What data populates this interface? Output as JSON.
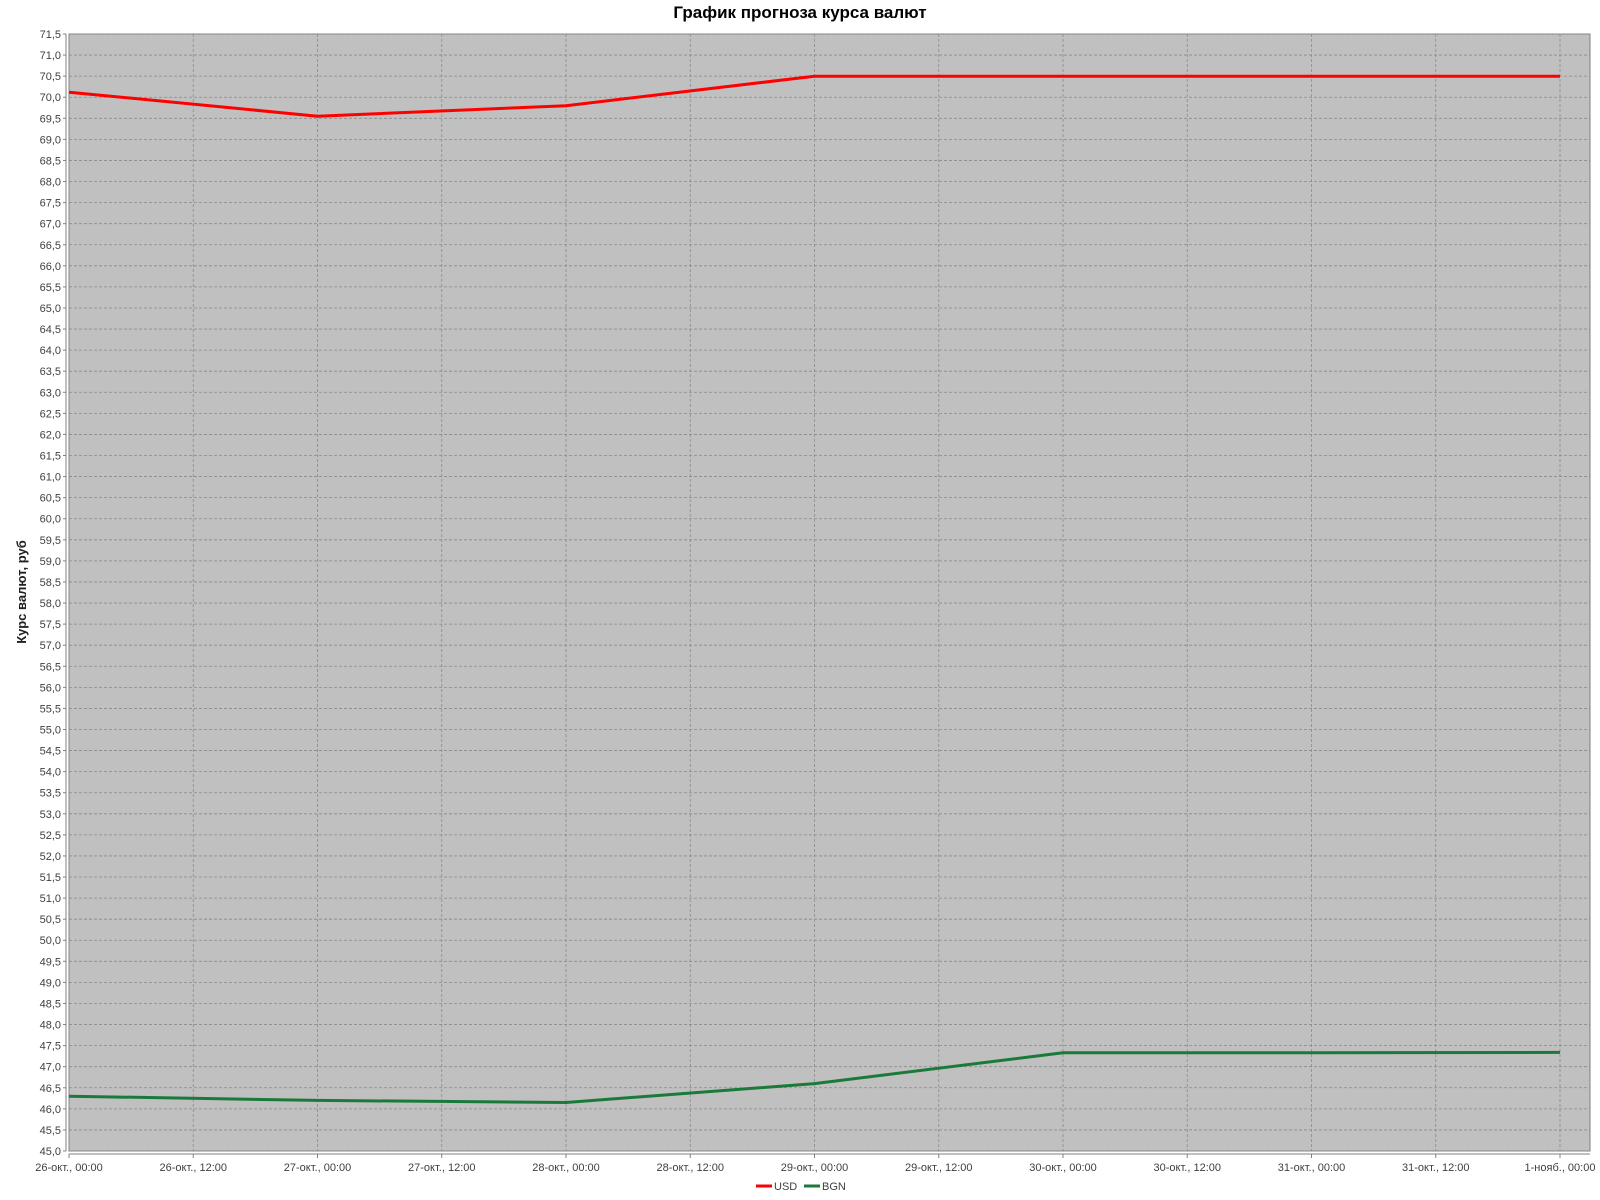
{
  "chart_data": {
    "type": "line",
    "title": "График прогноза курса валют",
    "xlabel": "",
    "ylabel": "Курс валют, руб",
    "x_ticks": [
      "26-окт., 00:00",
      "26-окт., 12:00",
      "27-окт., 00:00",
      "27-окт., 12:00",
      "28-окт., 00:00",
      "28-окт., 12:00",
      "29-окт., 00:00",
      "29-окт., 12:00",
      "30-окт., 00:00",
      "30-окт., 12:00",
      "31-окт., 00:00",
      "31-окт., 12:00",
      "1-нояб., 00:00"
    ],
    "x": [
      "26-окт., 00:00",
      "27-окт., 00:00",
      "28-окт., 00:00",
      "29-окт., 00:00",
      "30-окт., 00:00",
      "31-окт., 00:00",
      "1-нояб., 00:00"
    ],
    "ylim": [
      45.0,
      71.5
    ],
    "y_step": 0.5,
    "grid": true,
    "legend_position": "bottom-center",
    "series": [
      {
        "name": "USD",
        "color": "#ff0000",
        "values": [
          70.12,
          69.55,
          69.8,
          70.5,
          70.5,
          70.5,
          70.5
        ]
      },
      {
        "name": "BGN",
        "color": "#1a7a3a",
        "values": [
          46.3,
          46.2,
          46.15,
          46.6,
          47.33,
          47.33,
          47.34
        ]
      }
    ],
    "plot_background": "#c0c0c0"
  }
}
